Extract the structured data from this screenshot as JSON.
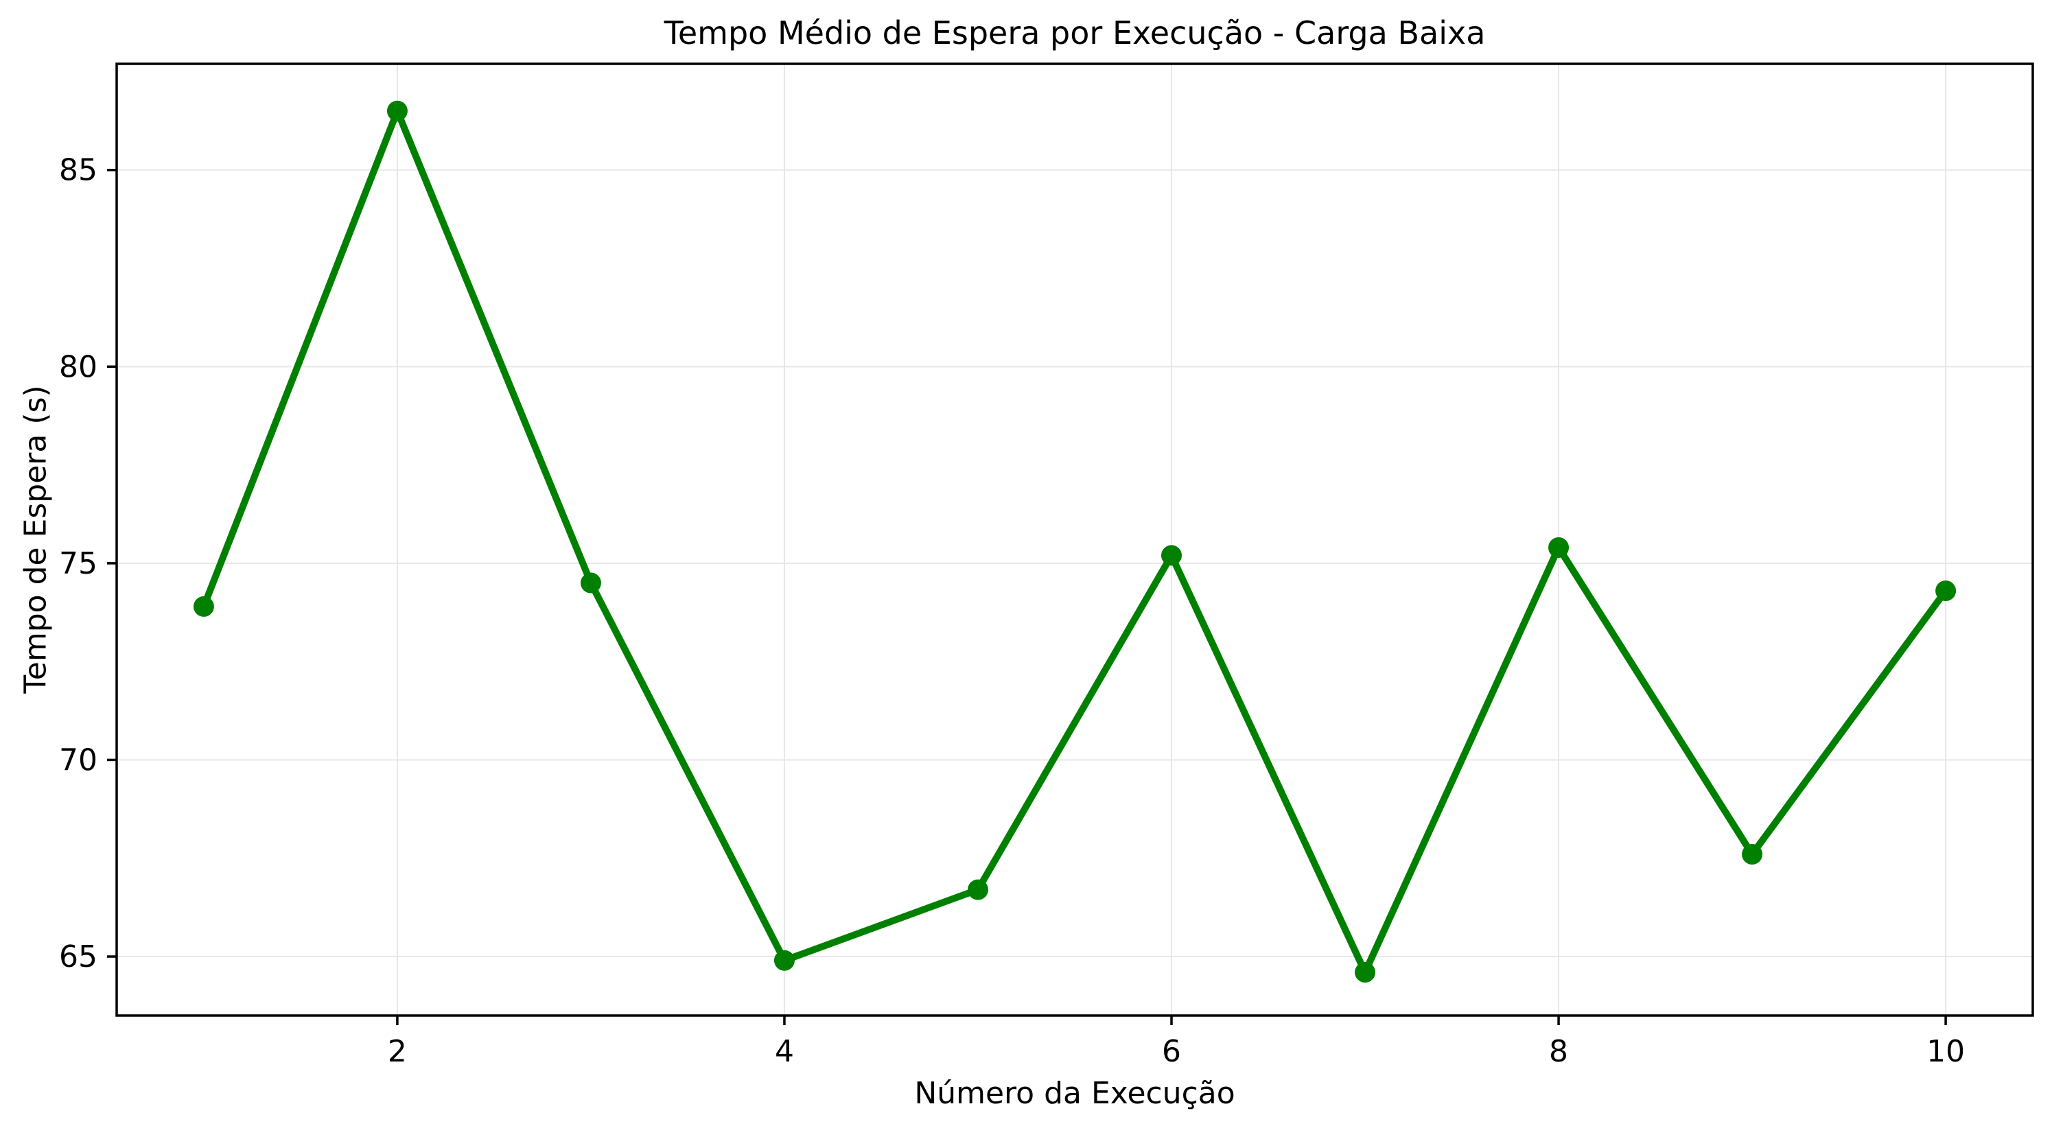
{
  "figure": {
    "background": "#ffffff"
  },
  "chart_data": {
    "type": "line",
    "title": "Tempo Médio de Espera por Execução - Carga Baixa",
    "xlabel": "Número da Execução",
    "ylabel": "Tempo de Espera (s)",
    "x": [
      1,
      2,
      3,
      4,
      5,
      6,
      7,
      8,
      9,
      10
    ],
    "values": [
      73.9,
      86.5,
      74.5,
      64.9,
      66.7,
      75.2,
      64.6,
      75.4,
      67.6,
      74.3
    ],
    "series_name": "Tempo Médio de Espera",
    "xticks": [
      2,
      4,
      6,
      8,
      10
    ],
    "yticks": [
      65,
      70,
      75,
      80,
      85
    ],
    "xlim": [
      0.55,
      10.45
    ],
    "ylim": [
      63.5,
      87.7
    ],
    "grid": true,
    "legend": false,
    "line_color": "#008000",
    "marker": "o",
    "marker_color": "#008000",
    "grid_color": "#e7e7e7",
    "spine_color": "#000000",
    "tick_color": "#000000",
    "background": "#ffffff"
  }
}
